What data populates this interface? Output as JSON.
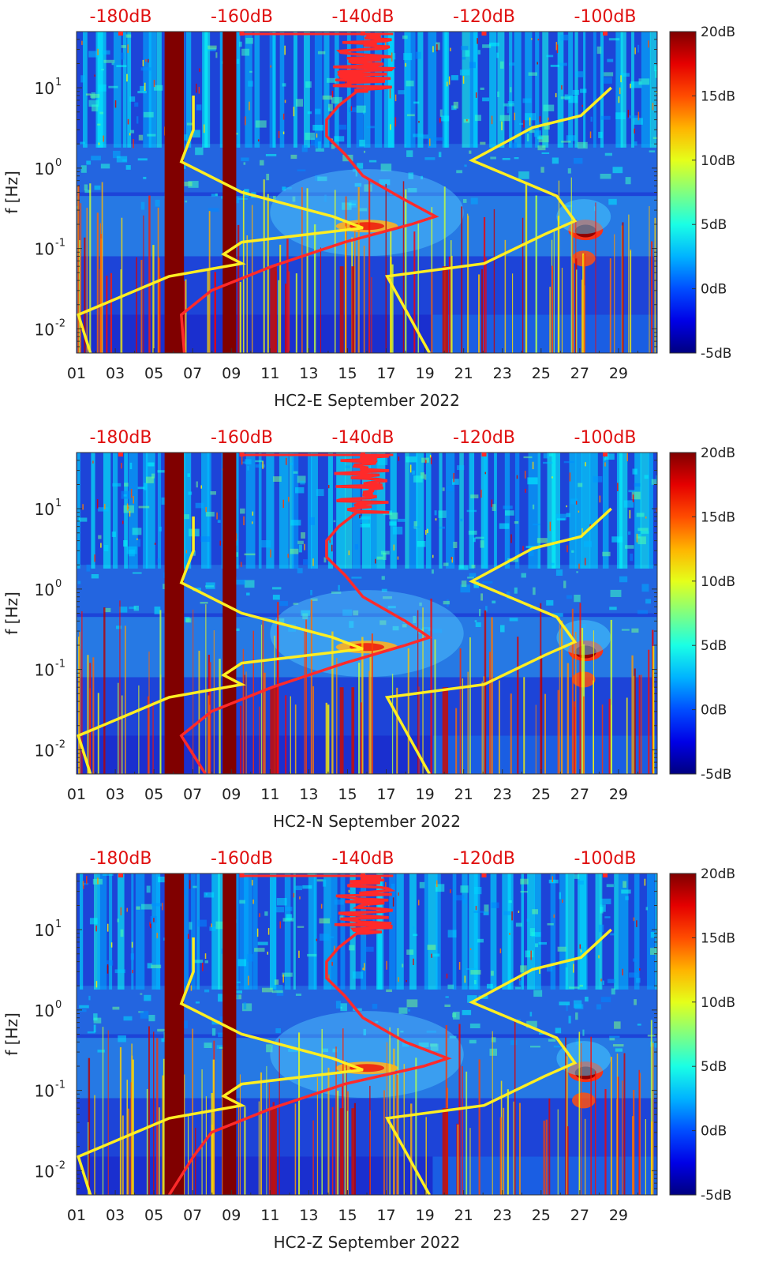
{
  "chart_data": [
    {
      "type": "heatmap",
      "title": "",
      "xlabel": "HC2-E September 2022",
      "ylabel": "f [Hz]",
      "x_ticks": [
        "01",
        "03",
        "05",
        "07",
        "09",
        "11",
        "13",
        "15",
        "17",
        "19",
        "21",
        "23",
        "25",
        "27",
        "29"
      ],
      "y_ticks": [
        "10-2",
        "10-1",
        "100",
        "101"
      ],
      "ylim": [
        0.005,
        50
      ],
      "yscale": "log",
      "top_axis_ticks": [
        "-180dB",
        "-160dB",
        "-140dB",
        "-120dB",
        "-100dB"
      ],
      "colorbar_ticks": [
        "20dB",
        "15dB",
        "10dB",
        "5dB",
        "0dB",
        "-5dB"
      ],
      "colorbar_range": [
        -5,
        20
      ],
      "series": [
        {
          "color": "#ff2a2a",
          "note_dB": "PSD overlay (top axis)",
          "points": [
            [
              -170,
              0.005
            ],
            [
              -166.5,
              0.015
            ],
            [
              -163,
              0.03
            ],
            [
              -155,
              0.06
            ],
            [
              -143,
              0.12
            ],
            [
              -132,
              0.2
            ],
            [
              -128,
              0.25
            ],
            [
              -133,
              0.4
            ],
            [
              -140,
              0.8
            ],
            [
              -143,
              1.5
            ],
            [
              -146,
              2.5
            ],
            [
              -146,
              4
            ],
            [
              -143,
              6
            ],
            [
              -140,
              10
            ],
            [
              -138,
              20
            ],
            [
              -138,
              45
            ]
          ]
        },
        {
          "color": "#ffee22",
          "note_dB": "Low/High noise model",
          "points_low": [
            [
              -185,
              0.005
            ],
            [
              -187,
              0.015
            ],
            [
              -180,
              0.025
            ],
            [
              -172,
              0.045
            ],
            [
              -160,
              0.065
            ],
            [
              -163,
              0.085
            ],
            [
              -160,
              0.12
            ],
            [
              -140,
              0.18
            ],
            [
              -145,
              0.25
            ],
            [
              -160,
              0.5
            ],
            [
              -170,
              1.2
            ],
            [
              -168,
              3
            ],
            [
              -168,
              8
            ]
          ],
          "points_high": [
            [
              -129,
              0.005
            ],
            [
              -136,
              0.045
            ],
            [
              -120,
              0.065
            ],
            [
              -110,
              0.15
            ],
            [
              -105,
              0.22
            ],
            [
              -108,
              0.45
            ],
            [
              -122,
              1.25
            ],
            [
              -112,
              3.2
            ],
            [
              -104,
              4.5
            ],
            [
              -99,
              10
            ]
          ]
        }
      ]
    },
    {
      "type": "heatmap",
      "title": "",
      "xlabel": "HC2-N September 2022",
      "ylabel": "f [Hz]",
      "x_ticks": [
        "01",
        "03",
        "05",
        "07",
        "09",
        "11",
        "13",
        "15",
        "17",
        "19",
        "21",
        "23",
        "25",
        "27",
        "29"
      ],
      "y_ticks": [
        "10-2",
        "10-1",
        "100",
        "101"
      ],
      "ylim": [
        0.005,
        50
      ],
      "yscale": "log",
      "top_axis_ticks": [
        "-180dB",
        "-160dB",
        "-140dB",
        "-120dB",
        "-100dB"
      ],
      "colorbar_ticks": [
        "20dB",
        "15dB",
        "10dB",
        "5dB",
        "0dB",
        "-5dB"
      ],
      "colorbar_range": [
        -5,
        20
      ]
    },
    {
      "type": "heatmap",
      "title": "",
      "xlabel": "HC2-Z September 2022",
      "ylabel": "f [Hz]",
      "x_ticks": [
        "01",
        "03",
        "05",
        "07",
        "09",
        "11",
        "13",
        "15",
        "17",
        "19",
        "21",
        "23",
        "25",
        "27",
        "29"
      ],
      "y_ticks": [
        "10-2",
        "10-1",
        "100",
        "101"
      ],
      "ylim": [
        0.005,
        50
      ],
      "yscale": "log",
      "top_axis_ticks": [
        "-180dB",
        "-160dB",
        "-140dB",
        "-120dB",
        "-100dB"
      ],
      "colorbar_ticks": [
        "20dB",
        "15dB",
        "10dB",
        "5dB",
        "0dB",
        "-5dB"
      ],
      "colorbar_range": [
        -5,
        20
      ]
    }
  ],
  "colors": {
    "top_axis_text": "#e01010",
    "psd_line": "#ff2a2a",
    "noise_model_line": "#ffee22",
    "background_heatmap": "#1840d8",
    "data_gap": "#800000"
  }
}
